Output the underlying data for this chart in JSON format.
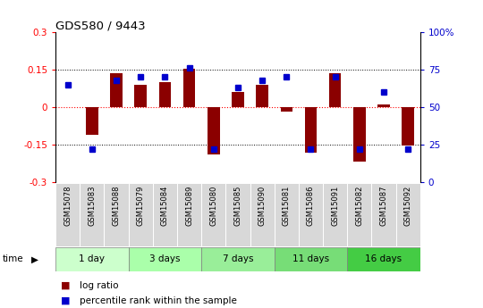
{
  "title": "GDS580 / 9443",
  "samples": [
    "GSM15078",
    "GSM15083",
    "GSM15088",
    "GSM15079",
    "GSM15084",
    "GSM15089",
    "GSM15080",
    "GSM15085",
    "GSM15090",
    "GSM15081",
    "GSM15086",
    "GSM15091",
    "GSM15082",
    "GSM15087",
    "GSM15092"
  ],
  "log_ratio": [
    0.0,
    -0.11,
    0.135,
    0.09,
    0.1,
    0.155,
    -0.19,
    0.06,
    0.09,
    -0.02,
    -0.185,
    0.135,
    -0.22,
    0.01,
    -0.155
  ],
  "percentile": [
    65,
    22,
    68,
    70,
    70,
    76,
    22,
    63,
    68,
    70,
    22,
    70,
    22,
    60,
    22
  ],
  "groups": [
    {
      "label": "1 day",
      "start": 0,
      "end": 3,
      "color": "#ccffcc"
    },
    {
      "label": "3 days",
      "start": 3,
      "end": 6,
      "color": "#aaffaa"
    },
    {
      "label": "7 days",
      "start": 6,
      "end": 9,
      "color": "#99ee99"
    },
    {
      "label": "11 days",
      "start": 9,
      "end": 12,
      "color": "#77dd77"
    },
    {
      "label": "16 days",
      "start": 12,
      "end": 15,
      "color": "#44cc44"
    }
  ],
  "bar_color": "#8B0000",
  "dot_color": "#0000CC",
  "ylim_left": [
    -0.3,
    0.3
  ],
  "ylim_right": [
    0,
    100
  ],
  "yticks_left": [
    -0.3,
    -0.15,
    0,
    0.15,
    0.3
  ],
  "yticks_right": [
    0,
    25,
    50,
    75,
    100
  ],
  "legend_items": [
    {
      "label": "log ratio",
      "color": "#8B0000"
    },
    {
      "label": "percentile rank within the sample",
      "color": "#0000CC"
    }
  ],
  "sample_cell_color": "#d8d8d8",
  "bar_width": 0.5
}
